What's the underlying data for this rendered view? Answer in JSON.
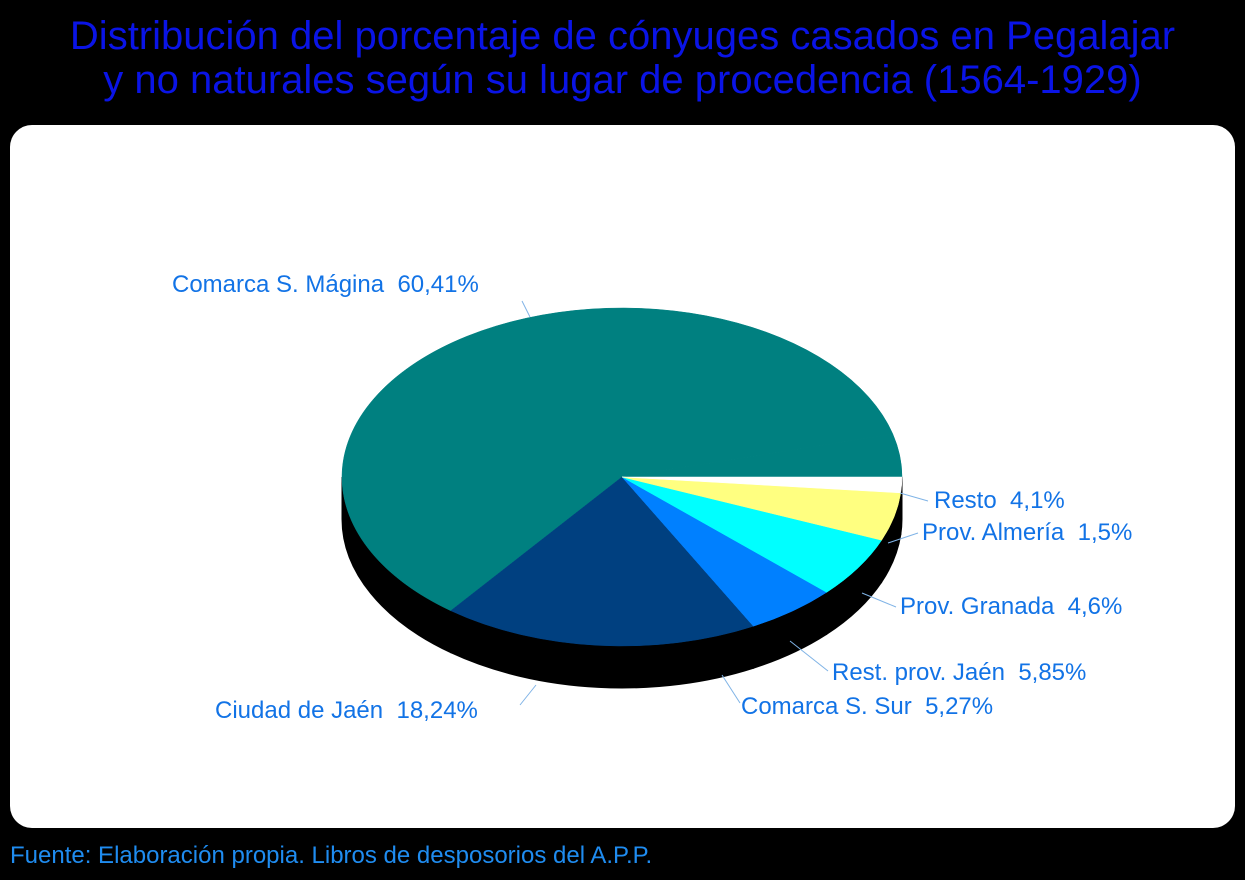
{
  "title": {
    "line1": "Distribución del porcentaje de cónyuges casados en Pegalajar",
    "line2": "y no naturales según su lugar de procedencia (1564-1929)"
  },
  "source": "Fuente: Elaboración propia. Libros de desposorios del A.P.P.",
  "colors": {
    "background": "#000000",
    "title": "#0a14e6",
    "panel": "#ffffff",
    "label": "#1273e6",
    "source": "#1f8cf0"
  },
  "chart_data": {
    "type": "pie",
    "style": "3d",
    "title": "Distribución del porcentaje de cónyuges casados en Pegalajar y no naturales según su lugar de procedencia (1564-1929)",
    "unit": "%",
    "slices": [
      {
        "label": "Comarca S. Mágina",
        "value": 60.41,
        "display": "60,41%",
        "color": "#008080"
      },
      {
        "label": "Resto",
        "value": 4.1,
        "display": "4,1%",
        "color": "#008080"
      },
      {
        "label": "Prov. Almería",
        "value": 1.5,
        "display": "1,5%",
        "color": "#ffffff"
      },
      {
        "label": "Prov. Granada",
        "value": 4.6,
        "display": "4,6%",
        "color": "#ffff80"
      },
      {
        "label": "Rest. prov. Jaén",
        "value": 5.85,
        "display": "5,85%",
        "color": "#00ffff"
      },
      {
        "label": "Comarca S. Sur",
        "value": 5.27,
        "display": "5,27%",
        "color": "#0080ff"
      },
      {
        "label": "Ciudad de Jaén",
        "value": 18.24,
        "display": "18,24%",
        "color": "#004080"
      }
    ]
  }
}
